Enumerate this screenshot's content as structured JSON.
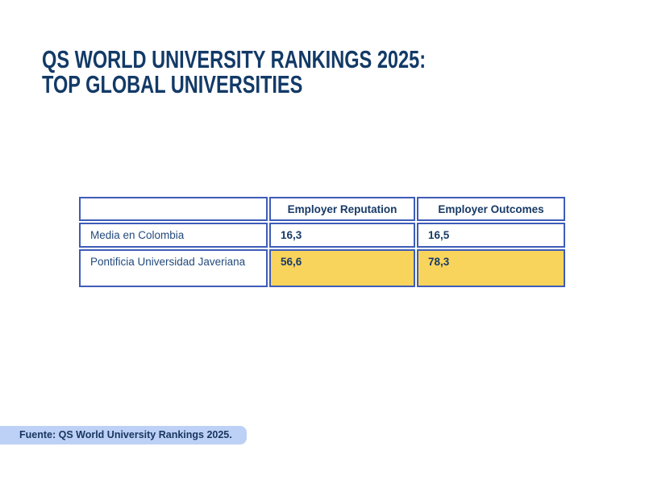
{
  "title": {
    "line1": "QS WORLD UNIVERSITY RANKINGS 2025:",
    "line2": "TOP GLOBAL UNIVERSITIES"
  },
  "table": {
    "columns": [
      "",
      "Employer Reputation",
      "Employer Outcomes"
    ],
    "rows": [
      {
        "label": "Media en Colombia",
        "employer_reputation": "16,3",
        "employer_outcomes": "16,5",
        "highlighted": false
      },
      {
        "label": "Pontificia Universidad Javeriana",
        "employer_reputation": "56,6",
        "employer_outcomes": "78,3",
        "highlighted": true
      }
    ]
  },
  "footer": {
    "source": "Fuente: QS World University Rankings 2025."
  },
  "colors": {
    "title_text": "#133a67",
    "table_border": "#3e5cb8",
    "header_reputation_bg": "#8da4d0",
    "header_outcomes_bg": "#c1d4f3",
    "highlight_yellow": "#f9d45c",
    "badge_bg": "#bdd0f6",
    "table_text": "#1e4373"
  },
  "chart_data": {
    "type": "table",
    "title": "QS World University Rankings 2025: Top Global Universities",
    "columns": [
      "",
      "Employer Reputation",
      "Employer Outcomes"
    ],
    "rows": [
      [
        "Media en Colombia",
        16.3,
        16.5
      ],
      [
        "Pontificia Universidad Javeriana",
        56.6,
        78.3
      ]
    ]
  }
}
